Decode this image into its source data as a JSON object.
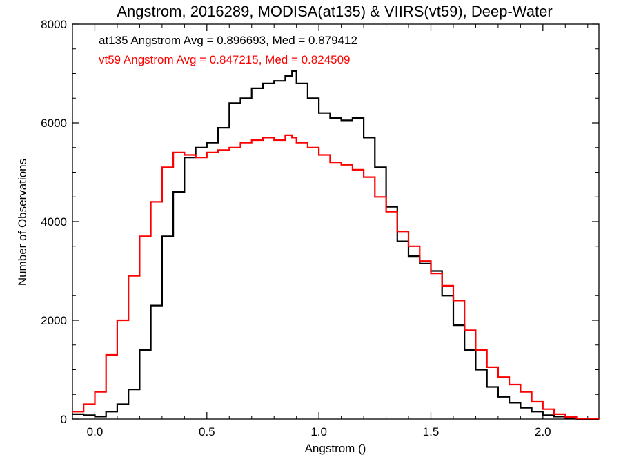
{
  "chart_data": {
    "type": "line",
    "step": true,
    "title": "Angstrom, 2016289, MODISA(at135) & VIIRS(vt59), Deep-Water",
    "xlabel": "Angstrom ()",
    "ylabel": "Number of Observations",
    "xlim": [
      -0.1,
      2.25
    ],
    "ylim": [
      0,
      8000
    ],
    "xticks": [
      0.0,
      0.5,
      1.0,
      1.5,
      2.0
    ],
    "xtick_labels": [
      "0.0",
      "0.5",
      "1.0",
      "1.5",
      "2.0"
    ],
    "yticks": [
      0,
      2000,
      4000,
      6000,
      8000
    ],
    "ytick_labels": [
      "0",
      "2000",
      "4000",
      "6000",
      "8000"
    ],
    "grid": false,
    "annotations": [
      {
        "text": "at135 Angstrom Avg = 0.896693, Med = 0.879412",
        "color": "#000000"
      },
      {
        "text": "vt59 Angstrom Avg = 0.847215, Med = 0.824509",
        "color": "#ff0000"
      }
    ],
    "series": [
      {
        "color": "#000000",
        "x": [
          -0.1,
          -0.05,
          0.0,
          0.05,
          0.1,
          0.15,
          0.2,
          0.25,
          0.3,
          0.35,
          0.4,
          0.45,
          0.5,
          0.55,
          0.6,
          0.65,
          0.7,
          0.75,
          0.8,
          0.85,
          0.88,
          0.9,
          0.95,
          1.0,
          1.05,
          1.1,
          1.15,
          1.2,
          1.25,
          1.3,
          1.35,
          1.4,
          1.45,
          1.5,
          1.55,
          1.6,
          1.65,
          1.7,
          1.75,
          1.8,
          1.85,
          1.9,
          1.95,
          2.0,
          2.05,
          2.1,
          2.15
        ],
        "y": [
          100,
          80,
          50,
          150,
          300,
          600,
          1400,
          2300,
          3700,
          4600,
          5300,
          5500,
          5600,
          5900,
          6400,
          6500,
          6700,
          6800,
          6850,
          6950,
          7050,
          6800,
          6500,
          6200,
          6100,
          6050,
          6100,
          5700,
          5100,
          4300,
          3600,
          3300,
          3150,
          3000,
          2500,
          1900,
          1400,
          1000,
          650,
          450,
          330,
          230,
          150,
          80,
          50,
          20,
          0
        ]
      },
      {
        "color": "#ff0000",
        "x": [
          -0.1,
          -0.05,
          0.0,
          0.05,
          0.1,
          0.15,
          0.2,
          0.25,
          0.3,
          0.35,
          0.4,
          0.45,
          0.5,
          0.55,
          0.6,
          0.65,
          0.7,
          0.75,
          0.8,
          0.85,
          0.88,
          0.9,
          0.95,
          1.0,
          1.05,
          1.1,
          1.15,
          1.2,
          1.25,
          1.3,
          1.35,
          1.4,
          1.45,
          1.5,
          1.55,
          1.6,
          1.65,
          1.7,
          1.75,
          1.8,
          1.85,
          1.9,
          1.95,
          2.0,
          2.05,
          2.1,
          2.15,
          2.25
        ],
        "y": [
          150,
          300,
          550,
          1300,
          2000,
          2900,
          3700,
          4400,
          5100,
          5400,
          5350,
          5300,
          5400,
          5450,
          5500,
          5600,
          5650,
          5700,
          5650,
          5750,
          5700,
          5600,
          5500,
          5350,
          5200,
          5150,
          5050,
          4900,
          4500,
          4200,
          3800,
          3500,
          3200,
          2950,
          2700,
          2400,
          1800,
          1400,
          1050,
          850,
          700,
          550,
          350,
          200,
          100,
          40,
          10,
          0
        ]
      }
    ]
  }
}
